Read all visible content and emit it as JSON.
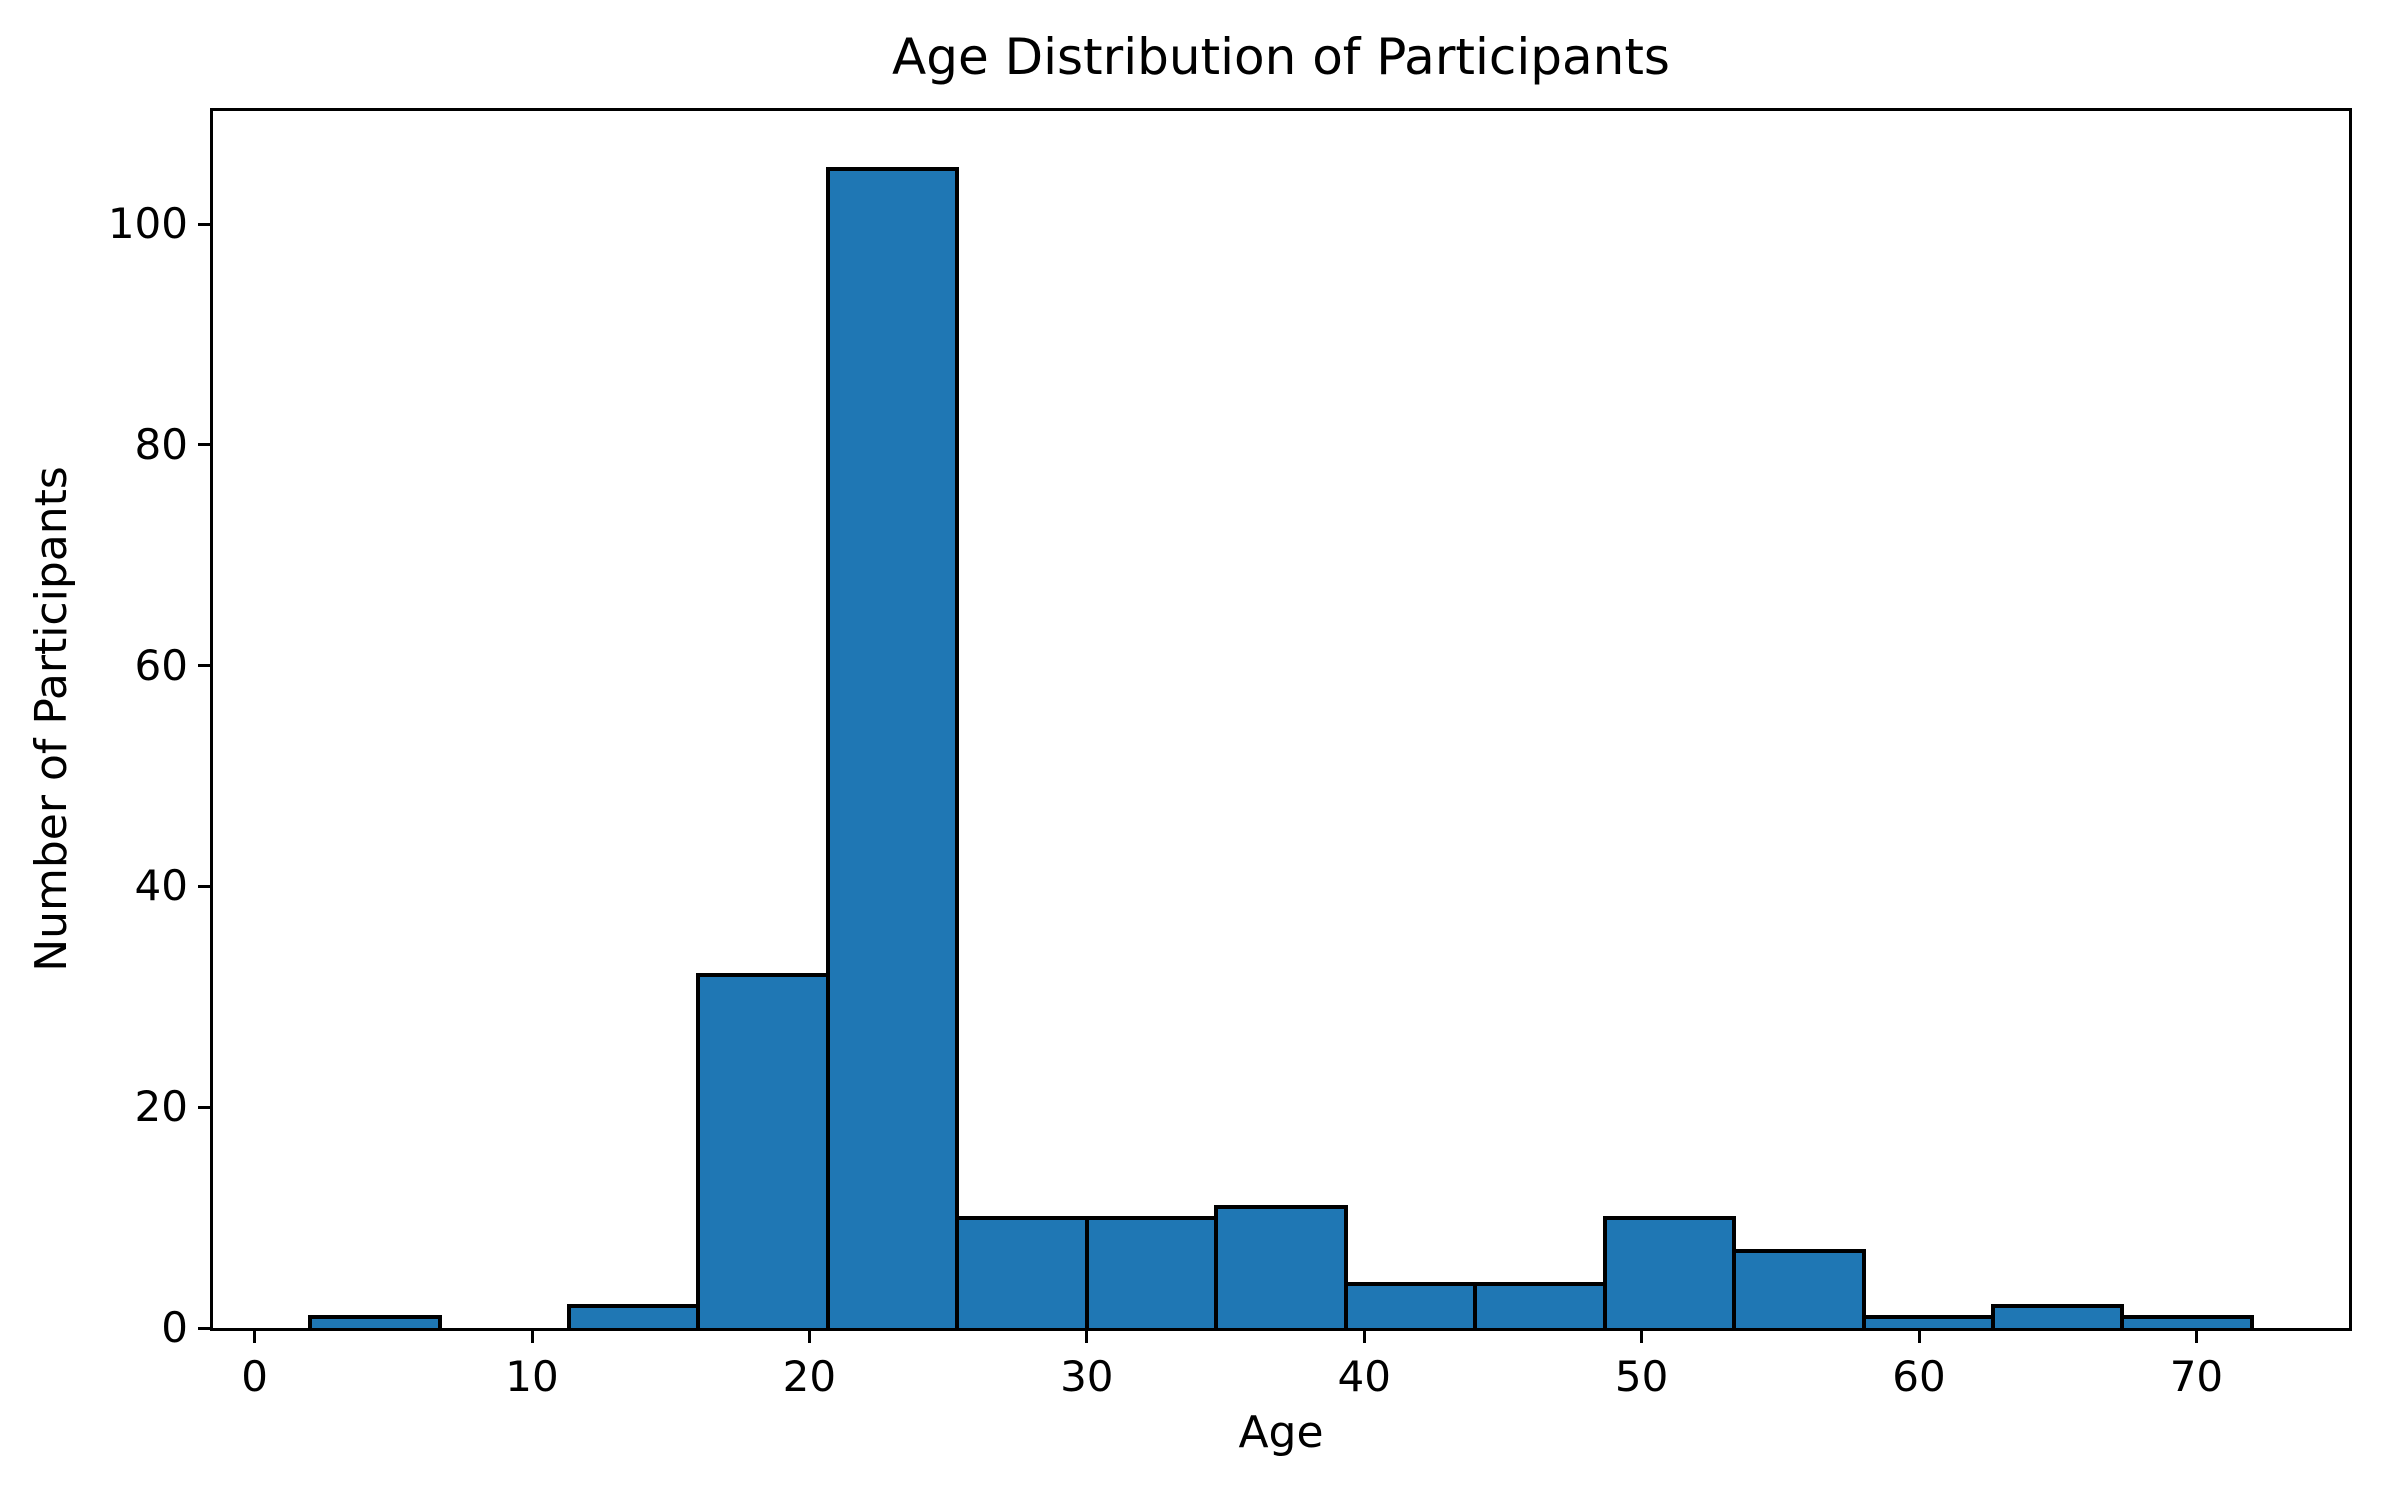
{
  "chart": {
    "title": "Age Distribution of Participants",
    "xlabel": "Age",
    "ylabel": "Number of Participants"
  },
  "chart_data": {
    "type": "bar",
    "subtype": "histogram",
    "title": "Age Distribution of Participants",
    "xlabel": "Age",
    "ylabel": "Number of Participants",
    "bin_edges": [
      2.0,
      6.6667,
      11.3333,
      16.0,
      20.6667,
      25.3333,
      30.0,
      34.6667,
      39.3333,
      44.0,
      48.6667,
      53.3333,
      58.0,
      62.6667,
      67.3333,
      72.0
    ],
    "counts": [
      1,
      0,
      2,
      32,
      105,
      10,
      10,
      11,
      4,
      4,
      10,
      7,
      1,
      2,
      1
    ],
    "total_count": 200,
    "xticks": [
      0,
      10,
      20,
      30,
      40,
      50,
      60,
      70
    ],
    "yticks": [
      0,
      20,
      40,
      60,
      80,
      100
    ],
    "xlim": [
      -1.5,
      75.5
    ],
    "ylim": [
      0,
      110.25
    ],
    "grid": false,
    "legend": false,
    "bar_color": "#1f77b4",
    "edge_color": "#000000",
    "background_color": "#ffffff"
  }
}
